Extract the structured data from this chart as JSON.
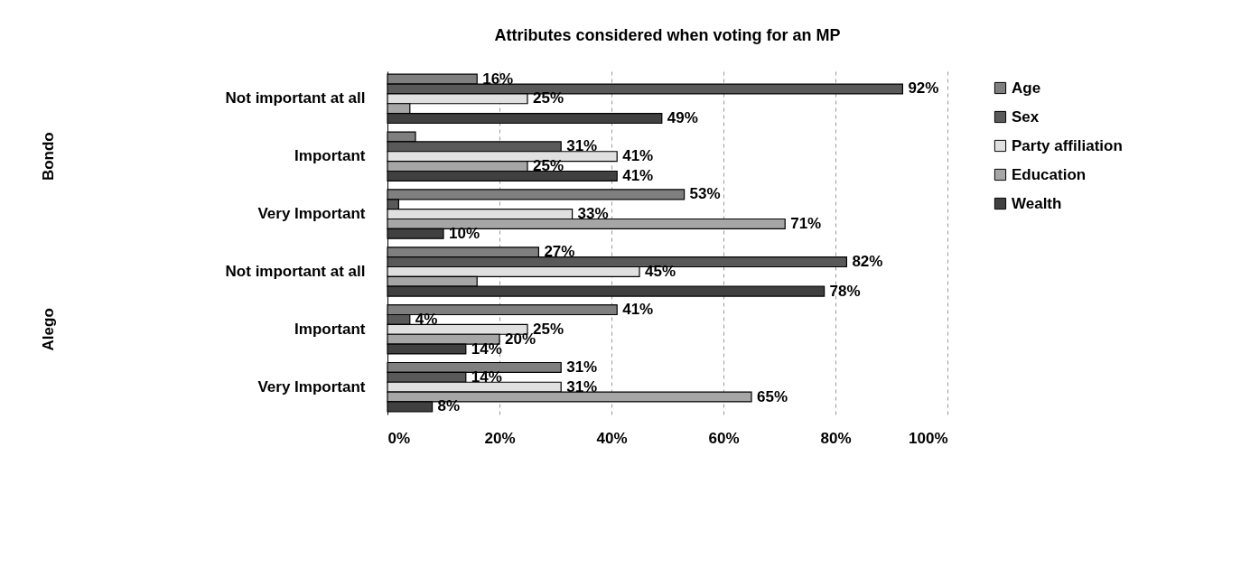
{
  "chart_data": {
    "type": "bar",
    "orientation": "horizontal",
    "title": "Attributes considered when voting for an MP",
    "categories": [
      "Not important at all",
      "Important",
      "Very Important",
      "Not important at all",
      "Important",
      "Very Important"
    ],
    "annotations": [
      "Bondo",
      "Alego"
    ],
    "series": [
      {
        "name": "Age",
        "color": "#7f7f7f",
        "values": [
          16,
          5,
          53,
          27,
          41,
          31
        ],
        "value_labels": [
          "16%",
          null,
          "53%",
          "27%",
          "41%",
          "31%"
        ]
      },
      {
        "name": "Sex",
        "color": "#595959",
        "values": [
          92,
          31,
          2,
          82,
          4,
          14
        ],
        "value_labels": [
          "92%",
          "31%",
          null,
          "82%",
          "4%",
          "14%"
        ]
      },
      {
        "name": "Party affiliation",
        "color": "#e0e0e0",
        "values": [
          25,
          41,
          33,
          45,
          25,
          31
        ],
        "value_labels": [
          "25%",
          "41%",
          "33%",
          "45%",
          "25%",
          "31%"
        ]
      },
      {
        "name": "Education",
        "color": "#a6a6a6",
        "values": [
          4,
          25,
          71,
          16,
          20,
          65
        ],
        "value_labels": [
          null,
          "25%",
          "71%",
          null,
          "20%",
          "65%"
        ]
      },
      {
        "name": "Wealth",
        "color": "#404040",
        "values": [
          49,
          41,
          10,
          78,
          14,
          8
        ],
        "value_labels": [
          "49%",
          "41%",
          "10%",
          "78%",
          "14%",
          "8%"
        ]
      }
    ],
    "xlim": [
      0,
      100
    ],
    "xticks": [
      {
        "value": 0,
        "label": "0%"
      },
      {
        "value": 20,
        "label": "20%"
      },
      {
        "value": 40,
        "label": "40%"
      },
      {
        "value": 60,
        "label": "60%"
      },
      {
        "value": 80,
        "label": "80%"
      },
      {
        "value": 100,
        "label": "100%"
      }
    ],
    "grid": "x",
    "legend": "right"
  }
}
